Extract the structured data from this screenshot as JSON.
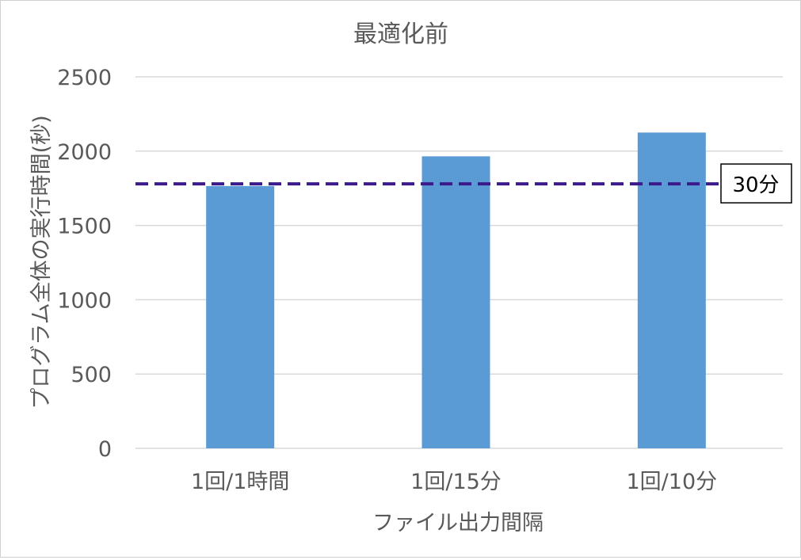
{
  "chart_data": {
    "type": "bar",
    "title": "最適化前",
    "xlabel": "ファイル出力間隔",
    "ylabel": "プログラム全体の実行時間(秒)",
    "categories": [
      "1回/1時間",
      "1回/15分",
      "1回/10分"
    ],
    "values": [
      1765,
      1965,
      2125
    ],
    "ylim": [
      0,
      2500
    ],
    "yticks": [
      0,
      500,
      1000,
      1500,
      2000,
      2500
    ],
    "grid": true,
    "reference_line": {
      "value": 1780,
      "label": "30分",
      "style": "dashed"
    },
    "colors": {
      "bar": "#5b9bd5",
      "reference": "#3b1a8c",
      "grid": "#d9d9d9",
      "text": "#595959"
    }
  }
}
